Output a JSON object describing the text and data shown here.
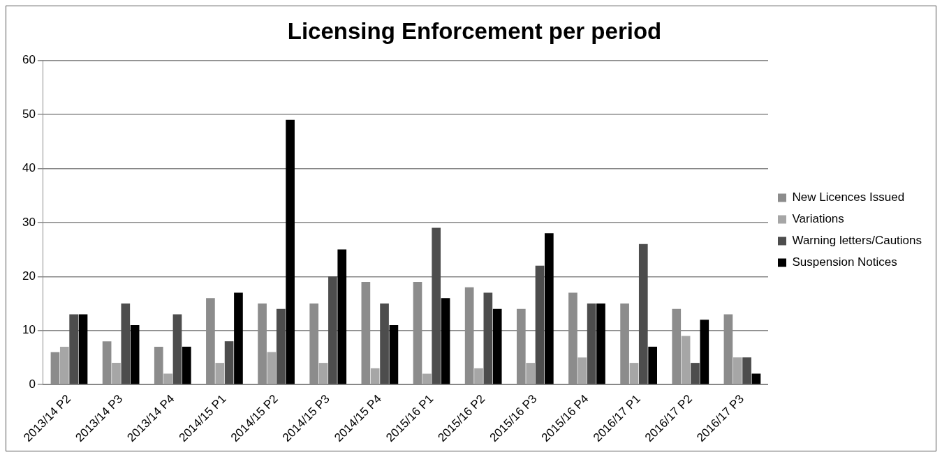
{
  "chart_data": {
    "type": "bar",
    "title": "Licensing Enforcement per period",
    "categories": [
      "2013/14 P2",
      "2013/14 P3",
      "2013/14 P4",
      "2014/15 P1",
      "2014/15 P2",
      "2014/15 P3",
      "2014/15 P4",
      "2015/16 P1",
      "2015/16 P2",
      "2015/16 P3",
      "2015/16 P4",
      "2016/17 P1",
      "2016/17 P2",
      "2016/17 P3"
    ],
    "series": [
      {
        "name": "New Licences Issued",
        "color": "#8c8c8c",
        "values": [
          6,
          8,
          7,
          16,
          15,
          15,
          19,
          19,
          18,
          14,
          17,
          15,
          14,
          13
        ]
      },
      {
        "name": "Variations",
        "color": "#a6a6a6",
        "values": [
          7,
          4,
          2,
          4,
          6,
          4,
          3,
          2,
          3,
          4,
          5,
          4,
          9,
          5
        ]
      },
      {
        "name": "Warning letters/Cautions",
        "color": "#4d4d4d",
        "values": [
          13,
          15,
          13,
          8,
          14,
          20,
          15,
          29,
          17,
          22,
          15,
          26,
          4,
          5
        ]
      },
      {
        "name": "Suspension Notices",
        "color": "#000000",
        "values": [
          13,
          11,
          7,
          17,
          49,
          25,
          11,
          16,
          14,
          28,
          15,
          7,
          12,
          2
        ]
      }
    ],
    "ylim": [
      0,
      60
    ],
    "yticks": [
      0,
      10,
      20,
      30,
      40,
      50,
      60
    ],
    "grid": "y",
    "legend": "right"
  }
}
